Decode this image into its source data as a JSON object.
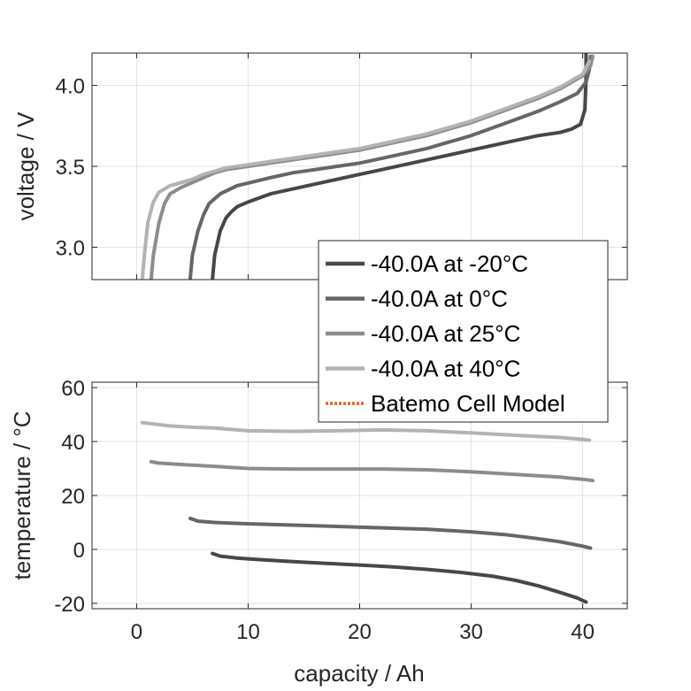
{
  "chart_data": [
    {
      "type": "line",
      "xlim": [
        -4,
        44
      ],
      "ylim": [
        2.8,
        4.2
      ],
      "yticks": [
        3.0,
        3.5,
        4.0
      ],
      "ytick_labels": [
        "3.0",
        "3.5",
        "4.0"
      ],
      "xticks": [
        0,
        10,
        20,
        30,
        40
      ],
      "xtick_labels": [
        "",
        "",
        "",
        "",
        ""
      ],
      "xlabel": "",
      "ylabel": "voltage / V",
      "grid": true,
      "series": [
        {
          "name": "-40.0A at -20°C",
          "color": "#474747",
          "x": [
            6.8,
            7.0,
            7.5,
            8.0,
            8.5,
            9.0,
            10.0,
            12.0,
            14.0,
            16.0,
            18.0,
            20.0,
            22.0,
            24.0,
            26.0,
            28.0,
            30.0,
            32.0,
            34.0,
            36.0,
            38.0,
            39.0,
            39.8,
            40.2,
            40.3,
            40.3
          ],
          "y": [
            2.8,
            2.95,
            3.1,
            3.18,
            3.22,
            3.25,
            3.28,
            3.33,
            3.36,
            3.39,
            3.42,
            3.45,
            3.48,
            3.51,
            3.54,
            3.57,
            3.6,
            3.63,
            3.66,
            3.69,
            3.71,
            3.73,
            3.76,
            3.85,
            4.05,
            4.2
          ]
        },
        {
          "name": "-40.0A at 0°C",
          "color": "#666666",
          "x": [
            4.8,
            5.0,
            5.5,
            6.0,
            6.5,
            7.5,
            9.0,
            12.0,
            14.0,
            16.0,
            18.0,
            20.0,
            22.0,
            24.0,
            26.0,
            28.0,
            30.0,
            32.0,
            34.0,
            36.0,
            38.0,
            39.5,
            40.3,
            40.6,
            40.7
          ],
          "y": [
            2.8,
            2.95,
            3.1,
            3.2,
            3.27,
            3.33,
            3.38,
            3.43,
            3.46,
            3.48,
            3.5,
            3.52,
            3.55,
            3.58,
            3.61,
            3.65,
            3.69,
            3.74,
            3.79,
            3.84,
            3.9,
            3.95,
            4.02,
            4.1,
            4.18
          ]
        },
        {
          "name": "-40.0A at 25°C",
          "color": "#8c8c8c",
          "x": [
            1.3,
            1.5,
            2.0,
            2.5,
            3.0,
            4.0,
            5.0,
            6.0,
            7.0,
            8.0,
            10.0,
            12.0,
            14.0,
            16.0,
            18.0,
            20.0,
            22.0,
            24.0,
            26.0,
            28.0,
            30.0,
            32.0,
            34.0,
            36.0,
            38.0,
            40.0,
            40.7,
            40.9
          ],
          "y": [
            2.8,
            2.95,
            3.15,
            3.27,
            3.33,
            3.37,
            3.4,
            3.43,
            3.46,
            3.48,
            3.5,
            3.52,
            3.54,
            3.56,
            3.58,
            3.6,
            3.63,
            3.66,
            3.69,
            3.73,
            3.77,
            3.82,
            3.87,
            3.92,
            3.98,
            4.06,
            4.12,
            4.18
          ]
        },
        {
          "name": "-40.0A at 40°C",
          "color": "#b3b3b3",
          "x": [
            0.5,
            0.7,
            1.0,
            1.5,
            2.0,
            3.0,
            4.0,
            5.0,
            6.0,
            7.0,
            8.0,
            10.0,
            12.0,
            14.0,
            16.0,
            18.0,
            20.0,
            22.0,
            24.0,
            26.0,
            28.0,
            30.0,
            32.0,
            34.0,
            36.0,
            38.0,
            40.0,
            40.6
          ],
          "y": [
            2.8,
            2.95,
            3.15,
            3.28,
            3.34,
            3.38,
            3.4,
            3.42,
            3.45,
            3.47,
            3.49,
            3.51,
            3.53,
            3.55,
            3.57,
            3.59,
            3.61,
            3.64,
            3.67,
            3.7,
            3.74,
            3.78,
            3.83,
            3.88,
            3.93,
            3.99,
            4.07,
            4.15
          ]
        }
      ]
    },
    {
      "type": "line",
      "xlim": [
        -4,
        44
      ],
      "ylim": [
        -22,
        62
      ],
      "yticks": [
        -20,
        0,
        20,
        40,
        60
      ],
      "ytick_labels": [
        "-20",
        "0",
        "20",
        "40",
        "60"
      ],
      "xticks": [
        0,
        10,
        20,
        30,
        40
      ],
      "xtick_labels": [
        "0",
        "10",
        "20",
        "30",
        "40"
      ],
      "xlabel": "capacity / Ah",
      "ylabel": "temperature / °C",
      "grid": true,
      "series": [
        {
          "name": "-40.0A at -20°C",
          "color": "#474747",
          "x": [
            6.8,
            7.5,
            9.0,
            11.0,
            14.0,
            17.0,
            20.0,
            23.0,
            26.0,
            29.0,
            32.0,
            34.0,
            36.0,
            38.0,
            39.5,
            40.3
          ],
          "y": [
            -1.5,
            -2.5,
            -3.2,
            -3.8,
            -4.5,
            -5.2,
            -5.8,
            -6.5,
            -7.4,
            -8.5,
            -10.0,
            -11.5,
            -13.5,
            -16.0,
            -18.0,
            -19.5
          ]
        },
        {
          "name": "-40.0A at 0°C",
          "color": "#666666",
          "x": [
            4.8,
            5.5,
            7.0,
            10.0,
            14.0,
            18.0,
            22.0,
            26.0,
            30.0,
            33.0,
            36.0,
            38.0,
            40.0,
            40.7
          ],
          "y": [
            11.5,
            10.5,
            10.0,
            9.5,
            9.0,
            8.5,
            8.0,
            7.5,
            6.5,
            5.5,
            4.0,
            2.8,
            1.2,
            0.5
          ]
        },
        {
          "name": "-40.0A at 25°C",
          "color": "#8c8c8c",
          "x": [
            1.3,
            2.0,
            4.0,
            7.0,
            10.0,
            14.0,
            18.0,
            22.0,
            26.0,
            30.0,
            34.0,
            38.0,
            40.0,
            40.9
          ],
          "y": [
            32.5,
            32.0,
            31.5,
            30.8,
            30.0,
            29.8,
            29.8,
            29.8,
            29.5,
            28.8,
            27.8,
            26.8,
            26.0,
            25.5
          ]
        },
        {
          "name": "-40.0A at 40°C",
          "color": "#b3b3b3",
          "x": [
            0.5,
            1.5,
            3.0,
            5.0,
            7.0,
            10.0,
            14.0,
            18.0,
            22.0,
            26.0,
            30.0,
            34.0,
            38.0,
            40.0,
            40.6
          ],
          "y": [
            47.0,
            46.5,
            45.8,
            45.3,
            45.0,
            44.0,
            43.8,
            44.0,
            44.3,
            44.0,
            43.2,
            42.3,
            41.5,
            40.8,
            40.5
          ]
        }
      ]
    }
  ],
  "legend": {
    "placement": "center-right",
    "entries": [
      {
        "label": "-40.0A at -20°C",
        "color": "#474747",
        "style": "solid"
      },
      {
        "label": "-40.0A at 0°C",
        "color": "#666666",
        "style": "solid"
      },
      {
        "label": "-40.0A at 25°C",
        "color": "#8c8c8c",
        "style": "solid"
      },
      {
        "label": "-40.0A at 40°C",
        "color": "#b3b3b3",
        "style": "solid"
      },
      {
        "label": "Batemo Cell Model",
        "color": "#e8621a",
        "style": "dotted"
      }
    ]
  }
}
